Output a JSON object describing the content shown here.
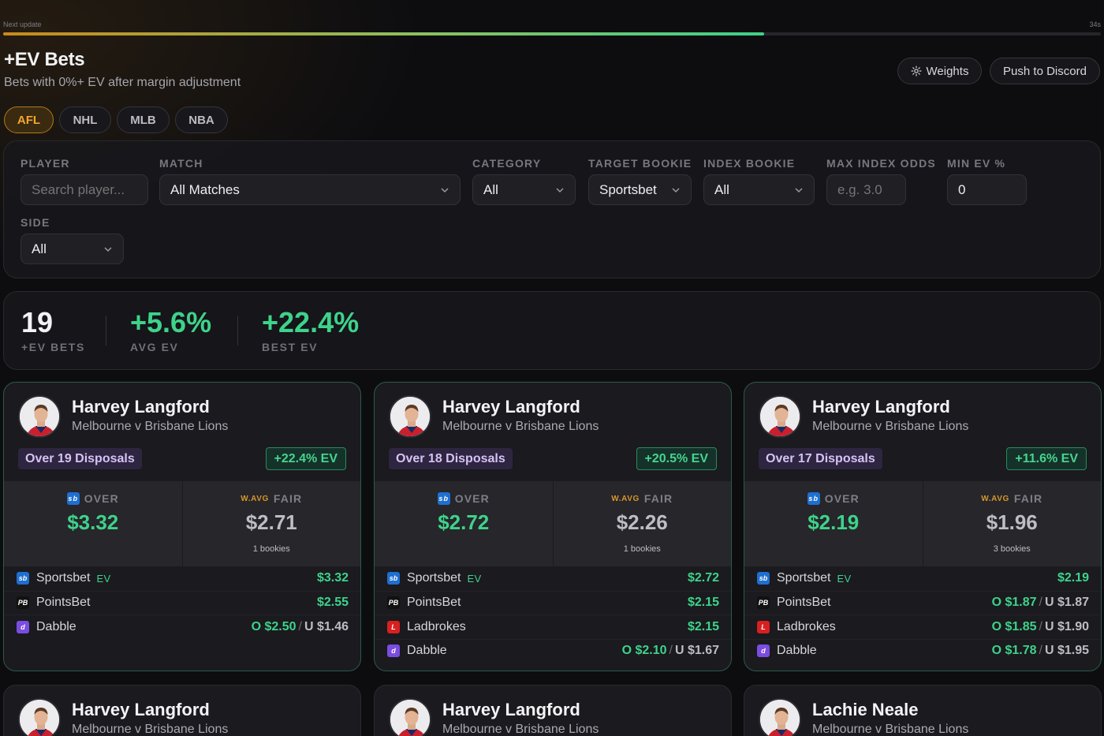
{
  "update": {
    "label": "Next update",
    "seconds": "34s",
    "progress": 0.693
  },
  "header": {
    "title": "+EV Bets",
    "subtitle": "Bets with 0%+ EV after margin adjustment",
    "weights_label": "Weights",
    "discord_label": "Push to Discord"
  },
  "tabs": [
    "AFL",
    "NHL",
    "MLB",
    "NBA"
  ],
  "active_tab": "AFL",
  "filters": {
    "player": {
      "label": "PLAYER",
      "placeholder": "Search player..."
    },
    "match": {
      "label": "MATCH",
      "value": "All Matches"
    },
    "category": {
      "label": "CATEGORY",
      "value": "All"
    },
    "target_bookie": {
      "label": "TARGET BOOKIE",
      "value": "Sportsbet"
    },
    "index_bookie": {
      "label": "INDEX BOOKIE",
      "value": "All"
    },
    "max_index_odds": {
      "label": "MAX INDEX ODDS",
      "placeholder": "e.g. 3.0"
    },
    "min_ev": {
      "label": "MIN EV %",
      "value": "0"
    },
    "side": {
      "label": "SIDE",
      "value": "All"
    }
  },
  "stats": {
    "count": {
      "value": "19",
      "label": "+EV BETS"
    },
    "avg": {
      "value": "+5.6%",
      "label": "AVG EV"
    },
    "best": {
      "value": "+22.4%",
      "label": "BEST EV"
    }
  },
  "colors": {
    "accent_green": "#3ed38a",
    "accent_orange": "#f0a830",
    "market_purple": "#d6c3f5",
    "sportsbet": "#1f6fd0",
    "pointsbet": "#111111",
    "ladbrokes": "#d82020",
    "dabble": "#7a4de0"
  },
  "cards": [
    {
      "player": "Harvey Langford",
      "match": "Melbourne v Brisbane Lions",
      "market": "Over 19 Disposals",
      "ev": "+22.4% EV",
      "over_label": "OVER",
      "over_value": "$3.32",
      "wavg_label": "W.AVG",
      "fair_label": "FAIR",
      "fair_value": "$2.71",
      "bookies_note": "1 bookies",
      "books": [
        {
          "name": "Sportsbet",
          "icon": "sportsbet-icon",
          "ev_tag": "EV",
          "odds": "$3.32"
        },
        {
          "name": "PointsBet",
          "icon": "pointsbet-icon",
          "odds": "$2.55"
        },
        {
          "name": "Dabble",
          "icon": "dabble-icon",
          "over": "O $2.50",
          "under": "U $1.46"
        }
      ]
    },
    {
      "player": "Harvey Langford",
      "match": "Melbourne v Brisbane Lions",
      "market": "Over 18 Disposals",
      "ev": "+20.5% EV",
      "over_label": "OVER",
      "over_value": "$2.72",
      "wavg_label": "W.AVG",
      "fair_label": "FAIR",
      "fair_value": "$2.26",
      "bookies_note": "1 bookies",
      "books": [
        {
          "name": "Sportsbet",
          "icon": "sportsbet-icon",
          "ev_tag": "EV",
          "odds": "$2.72"
        },
        {
          "name": "PointsBet",
          "icon": "pointsbet-icon",
          "odds": "$2.15"
        },
        {
          "name": "Ladbrokes",
          "icon": "ladbrokes-icon",
          "odds": "$2.15"
        },
        {
          "name": "Dabble",
          "icon": "dabble-icon",
          "over": "O $2.10",
          "under": "U $1.67"
        }
      ]
    },
    {
      "player": "Harvey Langford",
      "match": "Melbourne v Brisbane Lions",
      "market": "Over 17 Disposals",
      "ev": "+11.6% EV",
      "over_label": "OVER",
      "over_value": "$2.19",
      "wavg_label": "W.AVG",
      "fair_label": "FAIR",
      "fair_value": "$1.96",
      "bookies_note": "3 bookies",
      "books": [
        {
          "name": "Sportsbet",
          "icon": "sportsbet-icon",
          "ev_tag": "EV",
          "odds": "$2.19"
        },
        {
          "name": "PointsBet",
          "icon": "pointsbet-icon",
          "over": "O $1.87",
          "under": "U $1.87"
        },
        {
          "name": "Ladbrokes",
          "icon": "ladbrokes-icon",
          "over": "O $1.85",
          "under": "U $1.90"
        },
        {
          "name": "Dabble",
          "icon": "dabble-icon",
          "over": "O $1.78",
          "under": "U $1.95"
        }
      ]
    }
  ],
  "partial_cards": [
    {
      "player": "Harvey Langford",
      "match": "Melbourne v Brisbane Lions"
    },
    {
      "player": "Harvey Langford",
      "match": "Melbourne v Brisbane Lions"
    },
    {
      "player": "Lachie Neale",
      "match": "Melbourne v Brisbane Lions"
    }
  ]
}
